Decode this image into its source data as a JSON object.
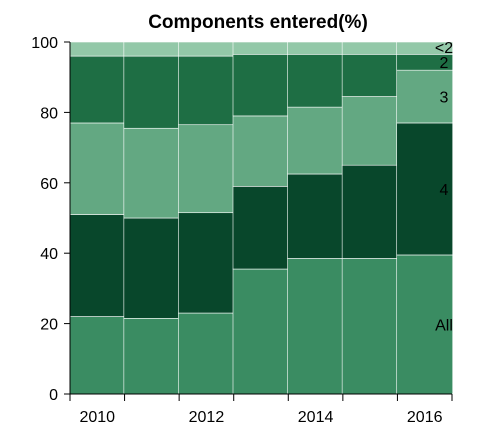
{
  "chart_data": {
    "type": "bar",
    "stacked": true,
    "title": "Components entered(%)",
    "xlabel": "",
    "ylabel": "",
    "ylim": [
      0,
      100
    ],
    "yticks": [
      0,
      20,
      40,
      60,
      80,
      100
    ],
    "categories": [
      "2010",
      "2011",
      "2012",
      "2013",
      "2014",
      "2015",
      "2016"
    ],
    "xtick_labels": [
      "2010",
      "2012",
      "2014",
      "2016"
    ],
    "grid": false,
    "series": [
      {
        "name": "All",
        "color": "#3a8c62",
        "values": [
          22,
          21.5,
          23,
          35.5,
          38.5,
          38.5,
          39.5
        ]
      },
      {
        "name": "4",
        "color": "#08472b",
        "values": [
          29,
          28.5,
          28.5,
          23.5,
          24,
          26.5,
          37.5
        ]
      },
      {
        "name": "3",
        "color": "#63a882",
        "values": [
          26,
          25.5,
          25,
          20,
          19,
          19.5,
          15
        ]
      },
      {
        "name": "2",
        "color": "#1e6e44",
        "values": [
          19,
          20.5,
          19.5,
          17.5,
          15,
          12,
          4.5
        ]
      },
      {
        "name": "<2",
        "color": "#93c8a8",
        "values": [
          4,
          4,
          4,
          3.5,
          3.5,
          3.5,
          3.5
        ]
      }
    ]
  }
}
